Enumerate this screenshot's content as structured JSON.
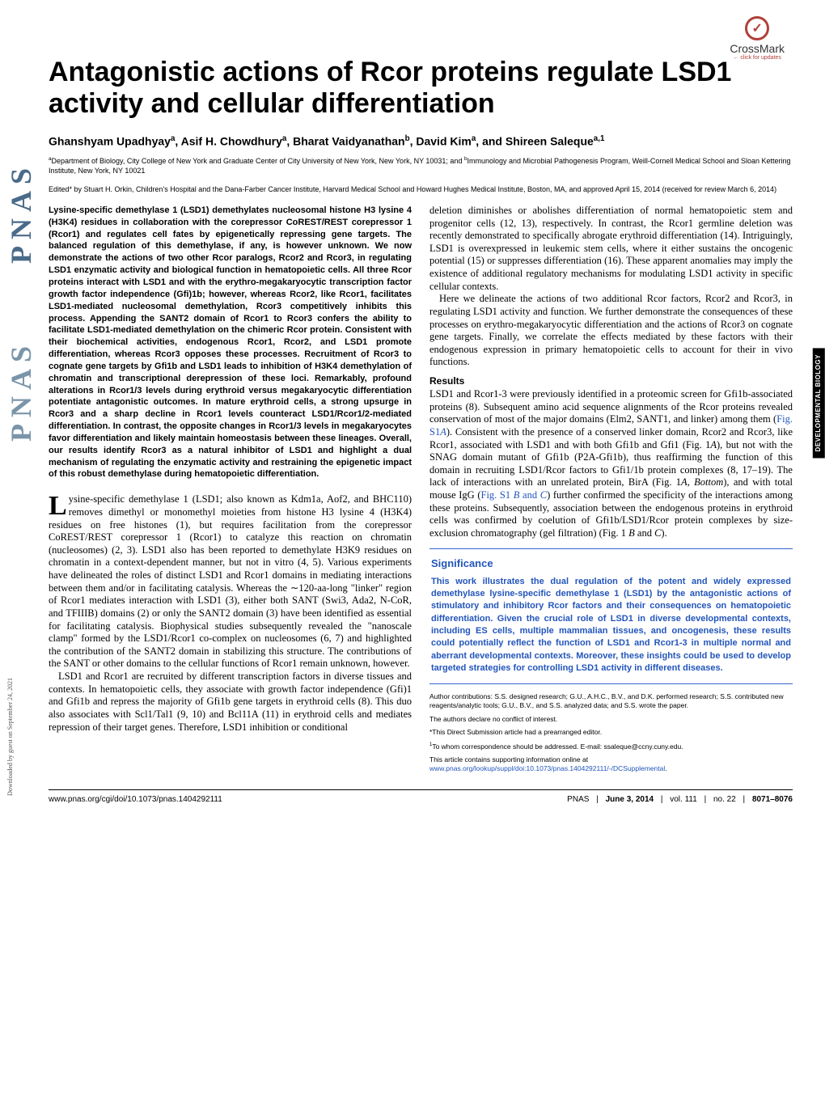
{
  "crossmark": {
    "label": "CrossMark",
    "sub": "← click for updates"
  },
  "title": "Antagonistic actions of Rcor proteins regulate LSD1 activity and cellular differentiation",
  "authors_html": "Ghanshyam Upadhyay<sup>a</sup>, Asif H. Chowdhury<sup>a</sup>, Bharat Vaidyanathan<sup>b</sup>, David Kim<sup>a</sup>, and Shireen Saleque<sup>a,1</sup>",
  "affiliations_html": "<sup>a</sup>Department of Biology, City College of New York and Graduate Center of City University of New York, New York, NY 10031; and <sup>b</sup>Immunology and Microbial Pathogenesis Program, Weill-Cornell Medical School and Sloan Kettering Institute, New York, NY 10021",
  "editor_note": "Edited* by Stuart H. Orkin, Children's Hospital and the Dana-Farber Cancer Institute, Harvard Medical School and Howard Hughes Medical Institute, Boston, MA, and approved April 15, 2014 (received for review March 6, 2014)",
  "abstract": "Lysine-specific demethylase 1 (LSD1) demethylates nucleosomal histone H3 lysine 4 (H3K4) residues in collaboration with the corepressor CoREST/REST corepressor 1 (Rcor1) and regulates cell fates by epigenetically repressing gene targets. The balanced regulation of this demethylase, if any, is however unknown. We now demonstrate the actions of two other Rcor paralogs, Rcor2 and Rcor3, in regulating LSD1 enzymatic activity and biological function in hematopoietic cells. All three Rcor proteins interact with LSD1 and with the erythro-megakaryocytic transcription factor growth factor independence (Gfi)1b; however, whereas Rcor2, like Rcor1, facilitates LSD1-mediated nucleosomal demethylation, Rcor3 competitively inhibits this process. Appending the SANT2 domain of Rcor1 to Rcor3 confers the ability to facilitate LSD1-mediated demethylation on the chimeric Rcor protein. Consistent with their biochemical activities, endogenous Rcor1, Rcor2, and LSD1 promote differentiation, whereas Rcor3 opposes these processes. Recruitment of Rcor3 to cognate gene targets by Gfi1b and LSD1 leads to inhibition of H3K4 demethylation of chromatin and transcriptional derepression of these loci. Remarkably, profound alterations in Rcor1/3 levels during erythroid versus megakaryocytic differentiation potentiate antagonistic outcomes. In mature erythroid cells, a strong upsurge in Rcor3 and a sharp decline in Rcor1 levels counteract LSD1/Rcor1/2-mediated differentiation. In contrast, the opposite changes in Rcor1/3 levels in megakaryocytes favor differentiation and likely maintain homeostasis between these lineages. Overall, our results identify Rcor3 as a natural inhibitor of LSD1 and highlight a dual mechanism of regulating the enzymatic activity and restraining the epigenetic impact of this robust demethylase during hematopoietic differentiation.",
  "body_left_p1_first": "L",
  "body_left_p1": "ysine-specific demethylase 1 (LSD1; also known as Kdm1a, Aof2, and BHC110) removes dimethyl or monomethyl moieties from histone H3 lysine 4 (H3K4) residues on free histones (1), but requires facilitation from the corepressor CoREST/REST corepressor 1 (Rcor1) to catalyze this reaction on chromatin (nucleosomes) (2, 3). LSD1 also has been reported to demethylate H3K9 residues on chromatin in a context-dependent manner, but not in vitro (4, 5). Various experiments have delineated the roles of distinct LSD1 and Rcor1 domains in mediating interactions between them and/or in facilitating catalysis. Whereas the ∼120-aa-long \"linker\" region of Rcor1 mediates interaction with LSD1 (3), either both SANT (Swi3, Ada2, N-CoR, and TFIIIB) domains (2) or only the SANT2 domain (3) have been identified as essential for facilitating catalysis. Biophysical studies subsequently revealed the \"nanoscale clamp\" formed by the LSD1/Rcor1 co-complex on nucleosomes (6, 7) and highlighted the contribution of the SANT2 domain in stabilizing this structure. The contributions of the SANT or other domains to the cellular functions of Rcor1 remain unknown, however.",
  "body_left_p2": "LSD1 and Rcor1 are recruited by different transcription factors in diverse tissues and contexts. In hematopoietic cells, they associate with growth factor independence (Gfi)1 and Gfi1b and repress the majority of Gfi1b gene targets in erythroid cells (8). This duo also associates with Scl1/Tal1 (9, 10) and Bcl11A (11) in erythroid cells and mediates repression of their target genes. Therefore, LSD1 inhibition or conditional",
  "body_right_p1_html": "deletion diminishes or abolishes differentiation of normal hematopoietic stem and progenitor cells (12, 13), respectively. In contrast, the Rcor1 germline deletion was recently demonstrated to specifically abrogate erythroid differentiation (14). Intriguingly, LSD1 is overexpressed in leukemic stem cells, where it either sustains the oncogenic potential (15) or suppresses differentiation (16). These apparent anomalies may imply the existence of additional regulatory mechanisms for modulating LSD1 activity in specific cellular contexts.",
  "body_right_p2": "Here we delineate the actions of two additional Rcor factors, Rcor2 and Rcor3, in regulating LSD1 activity and function. We further demonstrate the consequences of these processes on erythro-megakaryocytic differentiation and the actions of Rcor3 on cognate gene targets. Finally, we correlate the effects mediated by these factors with their endogenous expression in primary hematopoietic cells to account for their in vivo functions.",
  "results_head": "Results",
  "results_body_html": "LSD1 and Rcor1-3 were previously identified in a proteomic screen for Gfi1b-associated proteins (8). Subsequent amino acid sequence alignments of the Rcor proteins revealed conservation of most of the major domains (Elm2, SANT1, and linker) among them (<span class='link'>Fig. S1<i>A</i></span>). Consistent with the presence of a conserved linker domain, Rcor2 and Rcor3, like Rcor1, associated with LSD1 and with both Gfi1b and Gfi1 (Fig. 1<i>A</i>), but not with the SNAG domain mutant of Gfi1b (P2A-Gfi1b), thus reaffirming the function of this domain in recruiting LSD1/Rcor factors to Gfi1/1b protein complexes (8, 17–19). The lack of interactions with an unrelated protein, BirA (Fig. 1<i>A</i>, <i>Bottom</i>), and with total mouse IgG (<span class='link'>Fig. S1 <i>B</i> and <i>C</i></span>) further confirmed the specificity of the interactions among these proteins. Subsequently, association between the endogenous proteins in erythroid cells was confirmed by coelution of Gfi1b/LSD1/Rcor protein complexes by size-exclusion chromatography (gel filtration) (Fig. 1 <i>B</i> and <i>C</i>).",
  "significance": {
    "head": "Significance",
    "body": "This work illustrates the dual regulation of the potent and widely expressed demethylase lysine-specific demethylase 1 (LSD1) by the antagonistic actions of stimulatory and inhibitory Rcor factors and their consequences on hematopoietic differentiation. Given the crucial role of LSD1 in diverse developmental contexts, including ES cells, multiple mammalian tissues, and oncogenesis, these results could potentially reflect the function of LSD1 and Rcor1-3 in multiple normal and aberrant developmental contexts. Moreover, these insights could be used to develop targeted strategies for controlling LSD1 activity in different diseases."
  },
  "footnotes": {
    "contributions": "Author contributions: S.S. designed research; G.U., A.H.C., B.V., and D.K. performed research; S.S. contributed new reagents/analytic tools; G.U., B.V., and S.S. analyzed data; and S.S. wrote the paper.",
    "conflict": "The authors declare no conflict of interest.",
    "editor": "*This Direct Submission article had a prearranged editor.",
    "correspondence_html": "<sup>1</sup>To whom correspondence should be addressed. E-mail: ssaleque@ccny.cuny.edu.",
    "supporting_html": "This article contains supporting information online at <span class='link'>www.pnas.org/lookup/suppl/doi:10.1073/pnas.1404292111/-/DCSupplemental</span>."
  },
  "footer": {
    "doi": "www.pnas.org/cgi/doi/10.1073/pnas.1404292111",
    "journal": "PNAS",
    "date": "June 3, 2014",
    "vol": "vol. 111",
    "no": "no. 22",
    "pages": "8071–8076"
  },
  "side_tab": "DEVELOPMENTAL\nBIOLOGY",
  "download_note": "Downloaded by guest on September 24, 2021",
  "pnas_text": "PNAS",
  "colors": {
    "link": "#2255bb",
    "crossmark_ring": "#b0403a",
    "pnas_logo": "#4a6b8a"
  }
}
